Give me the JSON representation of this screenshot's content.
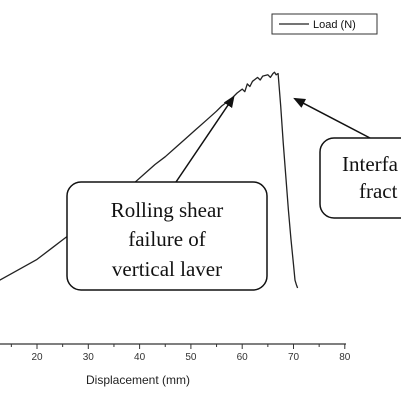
{
  "chart_data": {
    "type": "line",
    "title": "",
    "xlabel": "Displacement (mm)",
    "ylabel": "",
    "xlim": [
      10,
      80
    ],
    "x_ticks": [
      20,
      30,
      40,
      50,
      60,
      70,
      80
    ],
    "grid": false,
    "legend": {
      "placement": "top-right",
      "entries": [
        "Load (N)"
      ]
    },
    "series": [
      {
        "name": "Load (N)",
        "x": [
          10,
          15,
          20,
          23,
          25,
          27,
          29,
          31,
          33,
          35,
          37,
          39,
          41,
          43,
          45,
          47,
          49,
          51,
          53,
          55,
          56,
          57,
          58,
          59,
          60,
          60.5,
          61,
          61.5,
          62,
          63,
          63.5,
          64,
          65,
          65.5,
          66,
          66.3,
          66.6,
          67,
          67.5,
          68,
          68.5,
          69,
          69.5,
          70,
          70.3,
          70.6,
          70.8
        ],
        "y": [
          0,
          11,
          22,
          31,
          37,
          43,
          49,
          55,
          61,
          68,
          74,
          81,
          88,
          95,
          101,
          108,
          115,
          122,
          129,
          136,
          140,
          143,
          146,
          150,
          153,
          151,
          157,
          155,
          159,
          162,
          160,
          163,
          164,
          162,
          165,
          166,
          164,
          165,
          140,
          112,
          86,
          60,
          38,
          18,
          6,
          2,
          0
        ]
      }
    ],
    "annotations": [
      {
        "lines": [
          "Rolling shear",
          "failure of",
          "vertical laver"
        ],
        "points_to": [
          58.5,
          150
        ]
      },
      {
        "lines": [
          "Interfa",
          "fract"
        ],
        "points_to": [
          69.5,
          144
        ]
      }
    ]
  }
}
